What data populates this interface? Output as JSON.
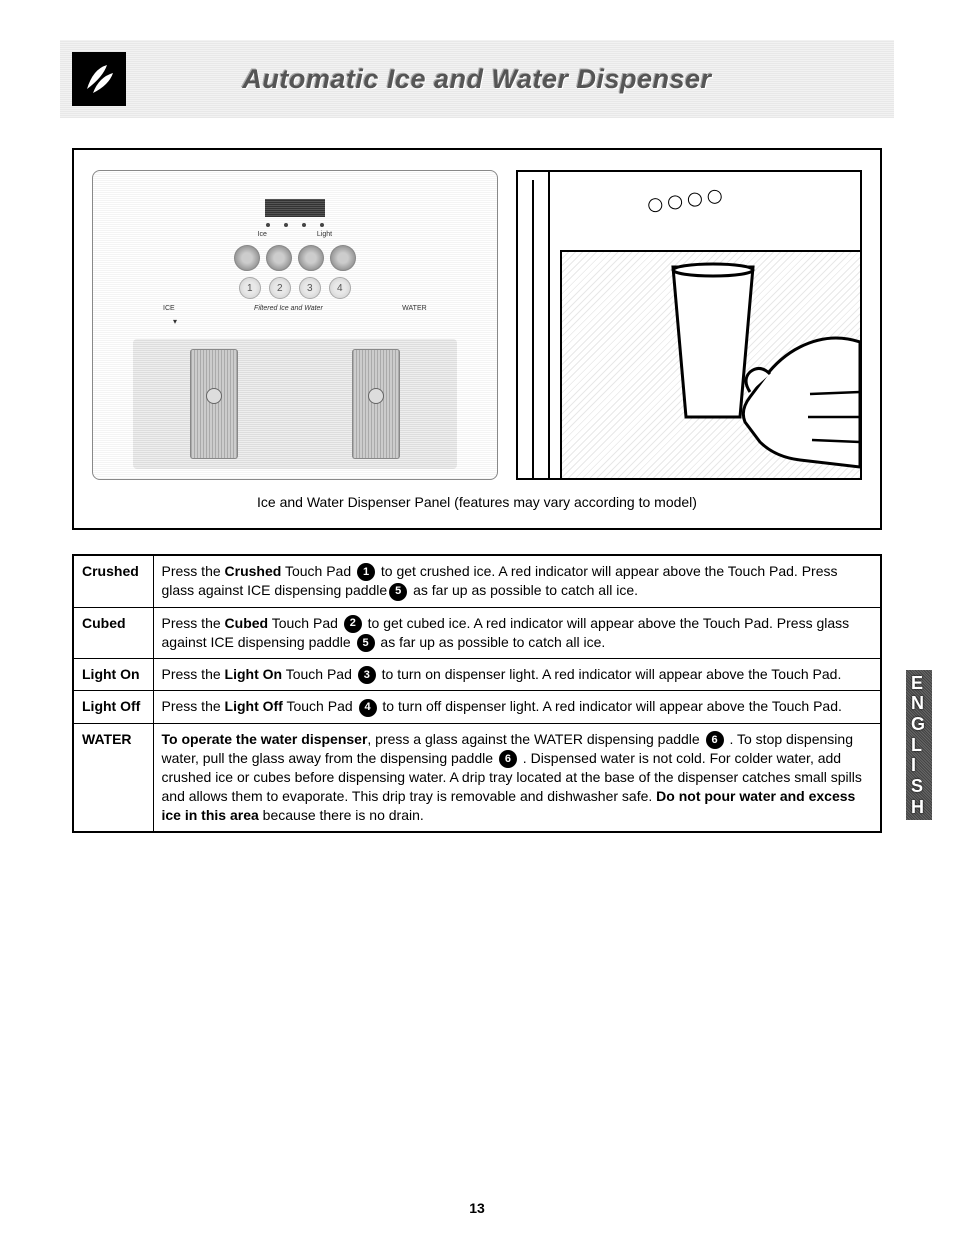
{
  "header": {
    "title": "Automatic Ice and Water Dispenser"
  },
  "figure": {
    "caption": "Ice and Water Dispenser Panel (features may vary according to model)",
    "panel": {
      "top_label_left": "Ice",
      "top_label_right": "Light",
      "nums": [
        "1",
        "2",
        "3",
        "4"
      ],
      "bot_label_left": "ICE",
      "bot_label_mid": "Filtered Ice and Water",
      "bot_label_right": "WATER"
    }
  },
  "table": {
    "rows": [
      {
        "label": "Crushed",
        "segments": [
          {
            "t": "Press the "
          },
          {
            "b": "Crushed"
          },
          {
            "t": " Touch Pad "
          },
          {
            "c": "1"
          },
          {
            "t": " to get crushed ice. A red indicator will appear above the Touch Pad. Press glass against ICE dispensing paddle"
          },
          {
            "c": "5"
          },
          {
            "t": " as far up as possible to catch all ice."
          }
        ]
      },
      {
        "label": "Cubed",
        "segments": [
          {
            "t": "Press the "
          },
          {
            "b": "Cubed"
          },
          {
            "t": " Touch Pad "
          },
          {
            "c": "2"
          },
          {
            "t": " to get cubed ice. A red indicator will appear above the Touch Pad. Press glass against ICE dispensing paddle "
          },
          {
            "c": "5"
          },
          {
            "t": " as far up as possible to catch all ice."
          }
        ]
      },
      {
        "label": "Light On",
        "segments": [
          {
            "t": "Press the "
          },
          {
            "b": "Light On"
          },
          {
            "t": " Touch Pad "
          },
          {
            "c": "3"
          },
          {
            "t": " to turn on dispenser light. A red indicator will appear above the Touch Pad."
          }
        ]
      },
      {
        "label": "Light Off",
        "segments": [
          {
            "t": "Press the "
          },
          {
            "b": "Light Off"
          },
          {
            "t": " Touch Pad "
          },
          {
            "c": "4"
          },
          {
            "t": " to turn off dispenser light.  A red indicator will appear above the Touch Pad."
          }
        ]
      },
      {
        "label": "WATER",
        "segments": [
          {
            "b": "To operate the water dispenser"
          },
          {
            "t": ", press a glass against the WATER dispensing paddle "
          },
          {
            "c": "6"
          },
          {
            "t": " . To stop dispensing water, pull the glass away from the dispensing paddle "
          },
          {
            "c": "6"
          },
          {
            "t": " . Dispensed water is not cold. For colder water, add crushed ice or cubes before dispensing water. A drip tray located at the base of the dispenser catches small spills and allows them to evaporate. This drip tray is removable and dishwasher safe. "
          },
          {
            "b": "Do not pour water and excess ice in this area"
          },
          {
            "t": " because there is no drain."
          }
        ]
      }
    ]
  },
  "side_tab": "ENGLISH",
  "page_number": "13"
}
